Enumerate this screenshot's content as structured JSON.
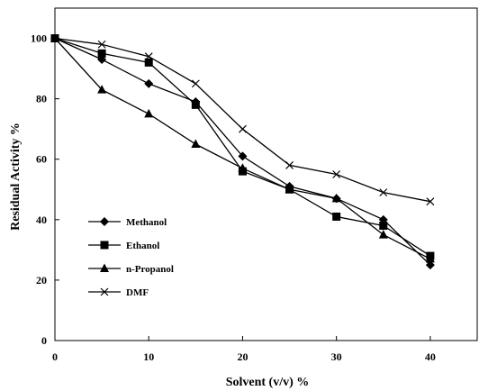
{
  "chart_data": {
    "type": "line",
    "title": "",
    "xlabel": "Solvent (v/v) %",
    "ylabel": "Residual Activity %",
    "xlim": [
      0,
      45
    ],
    "ylim": [
      0,
      110
    ],
    "xticks": [
      0,
      10,
      20,
      30,
      40
    ],
    "yticks": [
      0,
      20,
      40,
      60,
      80,
      100
    ],
    "grid": false,
    "legend_position": "bottom-left",
    "series": [
      {
        "name": "Methanol",
        "marker": "diamond",
        "color": "#000000",
        "x": [
          0,
          5,
          10,
          15,
          20,
          25,
          30,
          35,
          40
        ],
        "y": [
          100,
          93,
          85,
          79,
          61,
          51,
          47,
          40,
          25
        ]
      },
      {
        "name": "Ethanol",
        "marker": "square",
        "color": "#000000",
        "x": [
          0,
          5,
          10,
          15,
          20,
          25,
          30,
          35,
          40
        ],
        "y": [
          100,
          95,
          92,
          78,
          56,
          50,
          41,
          38,
          28
        ]
      },
      {
        "name": "n-Propanol",
        "marker": "triangle",
        "color": "#000000",
        "x": [
          0,
          5,
          10,
          15,
          20,
          25,
          30,
          35,
          40
        ],
        "y": [
          100,
          83,
          75,
          65,
          57,
          50,
          47,
          35,
          27
        ]
      },
      {
        "name": "DMF",
        "marker": "x",
        "color": "#000000",
        "x": [
          0,
          5,
          10,
          15,
          20,
          25,
          30,
          35,
          40
        ],
        "y": [
          100,
          98,
          94,
          85,
          70,
          58,
          55,
          49,
          46
        ]
      }
    ]
  }
}
